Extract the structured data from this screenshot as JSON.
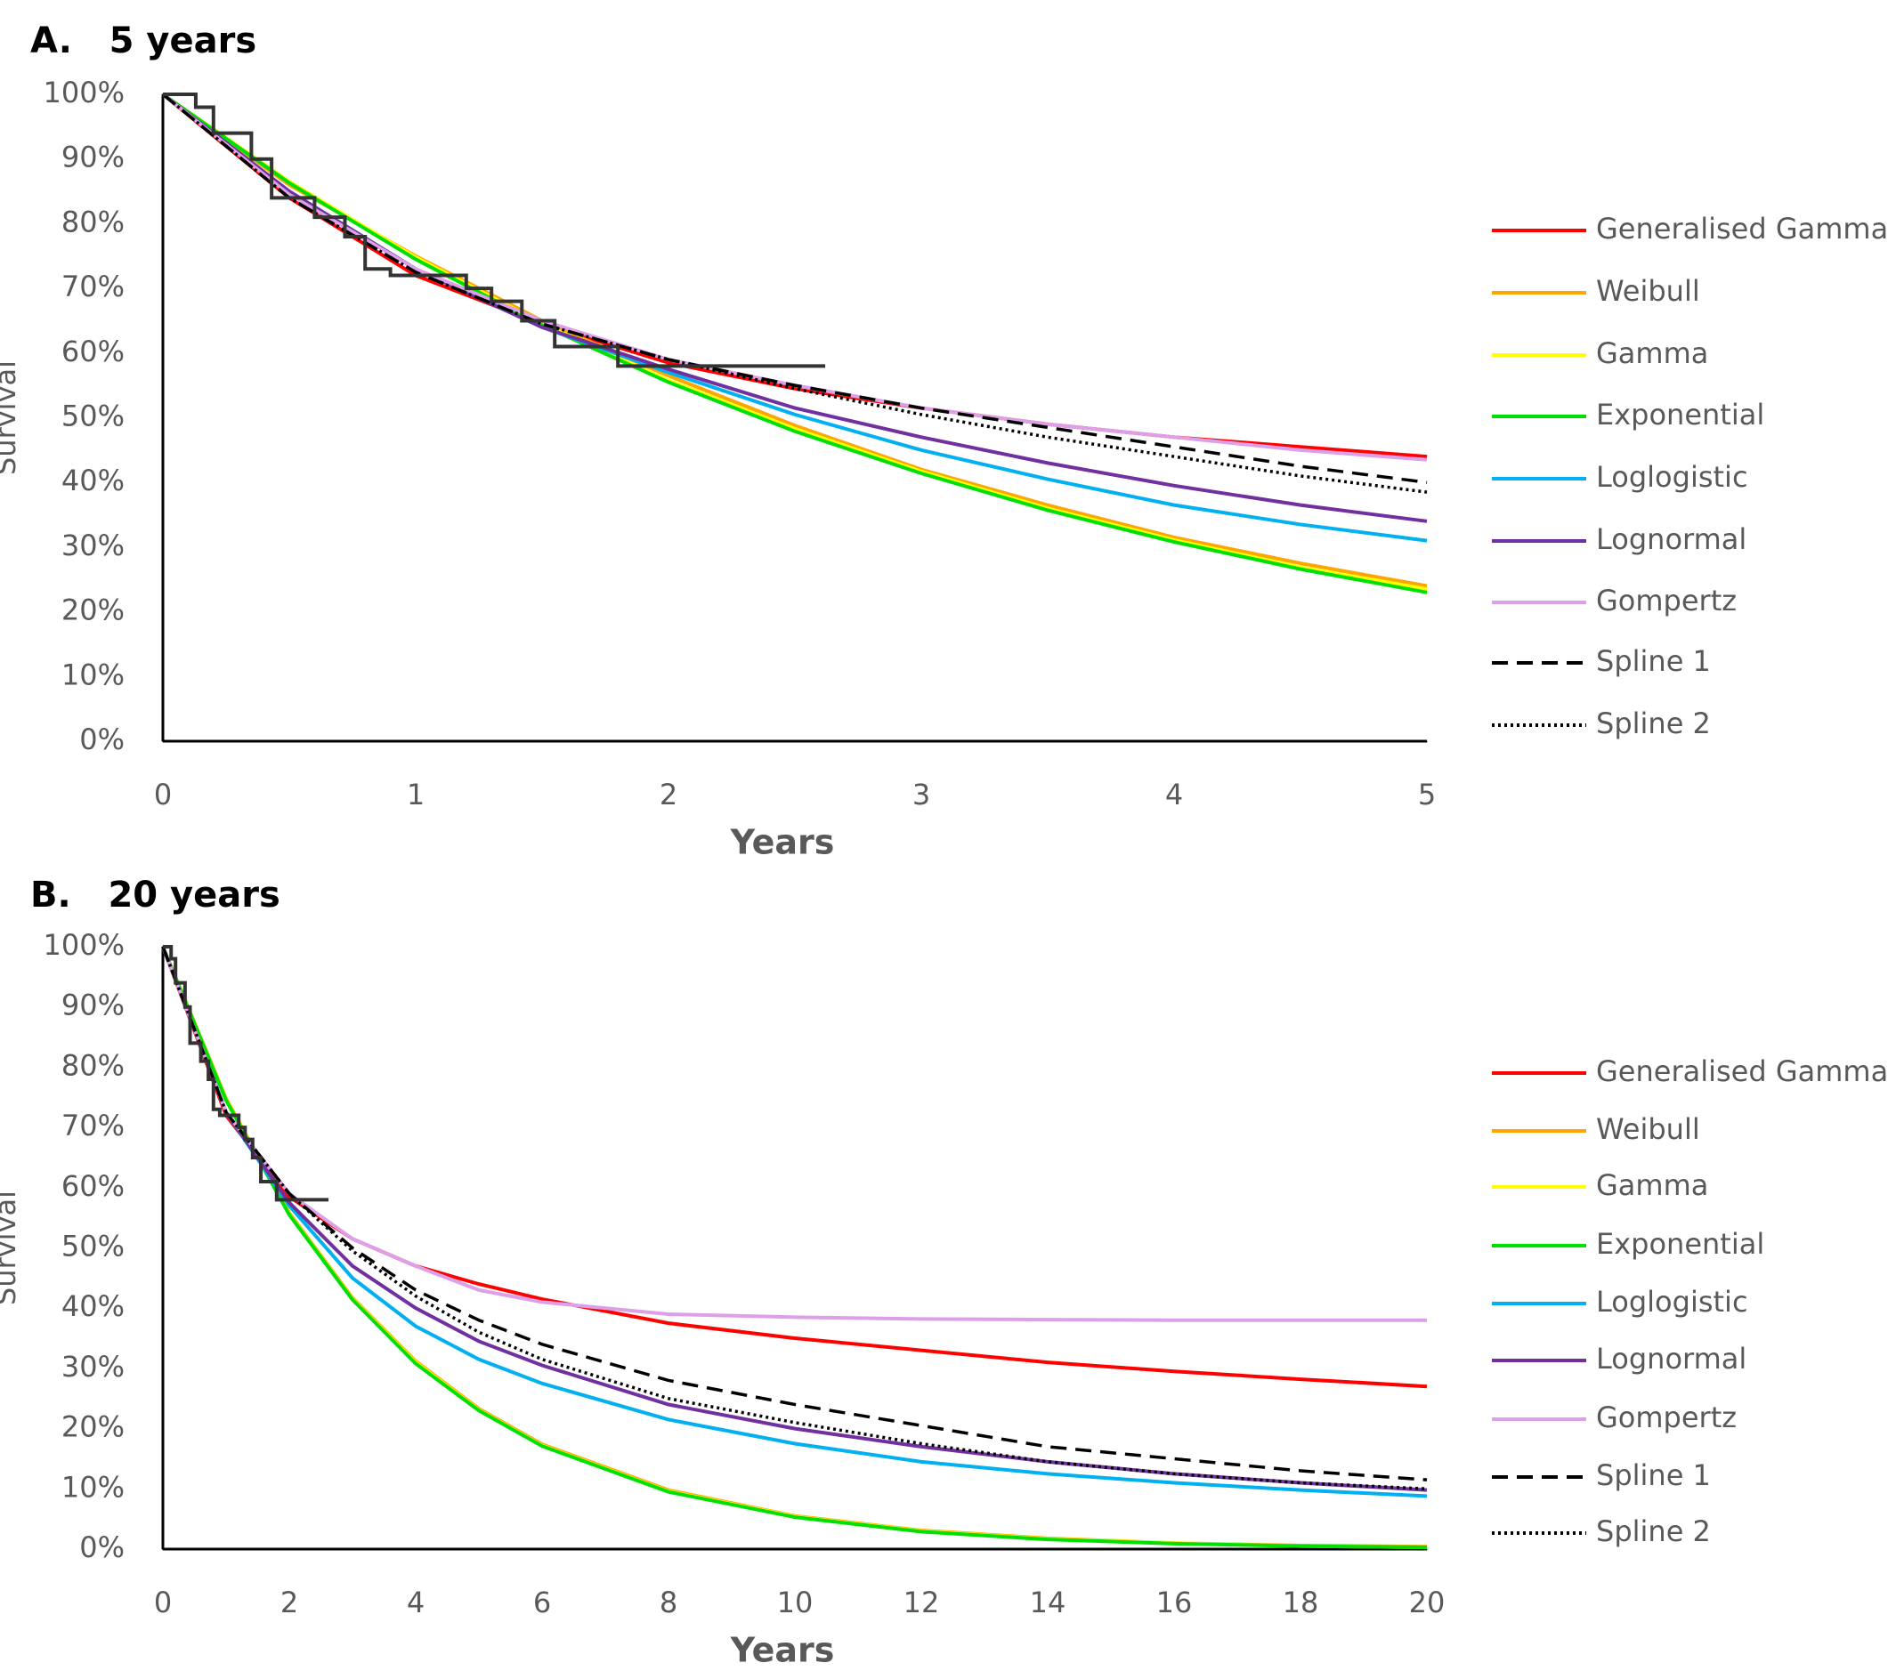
{
  "chart_data": [
    {
      "type": "line",
      "title": "A.   5 years",
      "xlabel": "Years",
      "ylabel": "Survival",
      "xlim": [
        0,
        5
      ],
      "xticks": [
        0,
        1,
        2,
        3,
        4,
        5
      ],
      "ylim": [
        0,
        100
      ],
      "yticks": [
        {
          "value": 0,
          "label": "0%"
        },
        {
          "value": 10,
          "label": "10%"
        },
        {
          "value": 20,
          "label": "20%"
        },
        {
          "value": 30,
          "label": "30%"
        },
        {
          "value": 40,
          "label": "40%"
        },
        {
          "value": 50,
          "label": "50%"
        },
        {
          "value": 60,
          "label": "60%"
        },
        {
          "value": 70,
          "label": "70%"
        },
        {
          "value": 80,
          "label": "80%"
        },
        {
          "value": 90,
          "label": "90%"
        },
        {
          "value": 100,
          "label": "100%"
        }
      ],
      "legend": "right",
      "series": [
        {
          "color": "#333333",
          "x": [
            0,
            0.13,
            0.13,
            0.2,
            0.2,
            0.35,
            0.35,
            0.43,
            0.43,
            0.6,
            0.6,
            0.72,
            0.72,
            0.8,
            0.8,
            0.9,
            0.9,
            1.2,
            1.2,
            1.3,
            1.3,
            1.42,
            1.42,
            1.55,
            1.55,
            1.8,
            1.8,
            2.62
          ],
          "values": [
            100,
            100,
            98,
            98,
            94,
            94,
            90,
            90,
            84,
            84,
            81,
            81,
            78,
            78,
            73,
            73,
            72,
            72,
            70,
            70,
            68,
            68,
            65,
            65,
            61,
            61,
            58,
            58
          ]
        },
        {
          "name": "Generalised Gamma",
          "color": "#ff0000",
          "x": [
            0,
            0.5,
            1,
            1.5,
            2,
            2.5,
            3,
            3.5,
            4,
            4.5,
            5
          ],
          "values": [
            100,
            84,
            72,
            64.5,
            58.5,
            54.5,
            51.5,
            49,
            47,
            45.5,
            44
          ]
        },
        {
          "name": "Weibull",
          "color": "#ffa500",
          "x": [
            0,
            0.5,
            1,
            1.5,
            2,
            2.5,
            3,
            3.5,
            4,
            4.5,
            5
          ],
          "values": [
            100,
            86,
            75,
            65,
            56.5,
            48.8,
            42,
            36.5,
            31.5,
            27.5,
            24
          ]
        },
        {
          "name": "Gamma",
          "color": "#ffff00",
          "x": [
            0,
            0.5,
            1,
            1.5,
            2,
            2.5,
            3,
            3.5,
            4,
            4.5,
            5
          ],
          "values": [
            100,
            86.5,
            74.8,
            64.6,
            55.8,
            48.3,
            41.7,
            36,
            31.1,
            26.9,
            23.5
          ]
        },
        {
          "name": "Exponential",
          "color": "#00e000",
          "x": [
            0,
            0.5,
            1,
            1.5,
            2,
            2.5,
            3,
            3.5,
            4,
            4.5,
            5
          ],
          "values": [
            100,
            86.3,
            74.5,
            64.3,
            55.5,
            47.9,
            41.4,
            35.7,
            30.8,
            26.6,
            23
          ]
        },
        {
          "name": "Loglogistic",
          "color": "#00b0f0",
          "x": [
            0,
            0.5,
            1,
            1.5,
            2,
            2.5,
            3,
            3.5,
            4,
            4.5,
            5
          ],
          "values": [
            100,
            85,
            73,
            64,
            57,
            50.5,
            45,
            40.5,
            36.5,
            33.5,
            31
          ]
        },
        {
          "name": "Lognormal",
          "color": "#7030a0",
          "x": [
            0,
            0.5,
            1,
            1.5,
            2,
            2.5,
            3,
            3.5,
            4,
            4.5,
            5
          ],
          "values": [
            100,
            85,
            73,
            64,
            57.5,
            51.5,
            47,
            43,
            39.5,
            36.5,
            34
          ]
        },
        {
          "name": "Gompertz",
          "color": "#dda0e8",
          "x": [
            0,
            0.5,
            1,
            1.5,
            2,
            2.5,
            3,
            3.5,
            4,
            4.5,
            5
          ],
          "values": [
            100,
            84.5,
            73,
            65,
            59,
            55,
            51.5,
            49,
            47,
            45,
            43.5
          ]
        },
        {
          "name": "Spline 1",
          "color": "#000000",
          "style": "dashed",
          "x": [
            0,
            0.5,
            1,
            1.5,
            2,
            2.5,
            3,
            3.5,
            4,
            4.5,
            5
          ],
          "values": [
            100,
            84,
            72.5,
            64.5,
            59,
            55,
            51.5,
            48.5,
            45.5,
            42.5,
            40
          ]
        },
        {
          "name": "Spline 2",
          "color": "#000000",
          "style": "dotted",
          "x": [
            0,
            0.5,
            1,
            1.5,
            2,
            2.5,
            3,
            3.5,
            4,
            4.5,
            5
          ],
          "values": [
            100,
            84,
            72.5,
            64.5,
            59,
            54.5,
            50.5,
            47,
            44,
            41,
            38.5
          ]
        }
      ]
    },
    {
      "type": "line",
      "title": "B.   20 years",
      "xlabel": "Years",
      "ylabel": "Survival",
      "xlim": [
        0,
        20
      ],
      "xticks": [
        0,
        2,
        4,
        6,
        8,
        10,
        12,
        14,
        16,
        18,
        20
      ],
      "ylim": [
        0,
        100
      ],
      "yticks": [
        {
          "value": 0,
          "label": "0%"
        },
        {
          "value": 10,
          "label": "10%"
        },
        {
          "value": 20,
          "label": "20%"
        },
        {
          "value": 30,
          "label": "30%"
        },
        {
          "value": 40,
          "label": "40%"
        },
        {
          "value": 50,
          "label": "50%"
        },
        {
          "value": 60,
          "label": "60%"
        },
        {
          "value": 70,
          "label": "70%"
        },
        {
          "value": 80,
          "label": "80%"
        },
        {
          "value": 90,
          "label": "90%"
        },
        {
          "value": 100,
          "label": "100%"
        }
      ],
      "legend": "right",
      "series": [
        {
          "color": "#333333",
          "x": [
            0,
            0.13,
            0.13,
            0.2,
            0.2,
            0.35,
            0.35,
            0.43,
            0.43,
            0.6,
            0.6,
            0.72,
            0.72,
            0.8,
            0.8,
            0.9,
            0.9,
            1.2,
            1.2,
            1.3,
            1.3,
            1.42,
            1.42,
            1.55,
            1.55,
            1.8,
            1.8,
            2.62
          ],
          "values": [
            100,
            100,
            98,
            98,
            94,
            94,
            90,
            90,
            84,
            84,
            81,
            81,
            78,
            78,
            73,
            73,
            72,
            72,
            70,
            70,
            68,
            68,
            65,
            65,
            61,
            61,
            58,
            58
          ]
        },
        {
          "name": "Generalised Gamma",
          "color": "#ff0000",
          "x": [
            0,
            1,
            2,
            3,
            4,
            5,
            6,
            8,
            10,
            12,
            14,
            16,
            18,
            20
          ],
          "values": [
            100,
            72,
            58.5,
            51.5,
            47,
            44,
            41.5,
            37.5,
            35,
            33,
            31,
            29.5,
            28.2,
            27
          ]
        },
        {
          "name": "Weibull",
          "color": "#ffa500",
          "x": [
            0,
            1,
            2,
            3,
            4,
            5,
            6,
            8,
            10,
            12,
            14,
            16,
            18,
            20
          ],
          "values": [
            100,
            74.8,
            55.8,
            41.7,
            31.2,
            23.3,
            17.4,
            9.8,
            5.5,
            3.1,
            1.8,
            1,
            0.6,
            0.4
          ]
        },
        {
          "name": "Gamma",
          "color": "#ffff00",
          "x": [
            0,
            1,
            2,
            3,
            4,
            5,
            6,
            8,
            10,
            12,
            14,
            16,
            18,
            20
          ],
          "values": [
            100,
            74.6,
            55.6,
            41.5,
            31,
            23.1,
            17.2,
            9.6,
            5.4,
            3,
            1.7,
            1,
            0.5,
            0.3
          ]
        },
        {
          "name": "Exponential",
          "color": "#00e000",
          "x": [
            0,
            1,
            2,
            3,
            4,
            5,
            6,
            8,
            10,
            12,
            14,
            16,
            18,
            20
          ],
          "values": [
            100,
            74.5,
            55.5,
            41.4,
            30.8,
            23,
            17.1,
            9.5,
            5.3,
            2.9,
            1.6,
            0.9,
            0.5,
            0.3
          ]
        },
        {
          "name": "Loglogistic",
          "color": "#00b0f0",
          "x": [
            0,
            1,
            2,
            3,
            4,
            5,
            6,
            8,
            10,
            12,
            14,
            16,
            18,
            20
          ],
          "values": [
            100,
            72.5,
            57,
            45,
            37,
            31.5,
            27.5,
            21.5,
            17.5,
            14.5,
            12.5,
            11,
            9.8,
            8.8
          ]
        },
        {
          "name": "Lognormal",
          "color": "#7030a0",
          "x": [
            0,
            1,
            2,
            3,
            4,
            5,
            6,
            8,
            10,
            12,
            14,
            16,
            18,
            20
          ],
          "values": [
            100,
            72.5,
            57.5,
            47,
            40,
            34.5,
            30.5,
            24,
            20,
            17,
            14.5,
            12.5,
            11,
            9.8
          ]
        },
        {
          "name": "Gompertz",
          "color": "#dda0e8",
          "x": [
            0,
            1,
            2,
            3,
            4,
            5,
            6,
            8,
            10,
            12,
            14,
            16,
            18,
            20
          ],
          "values": [
            100,
            72.5,
            59,
            51.5,
            47,
            43,
            41,
            39,
            38.5,
            38.2,
            38.1,
            38,
            38,
            38
          ]
        },
        {
          "name": "Spline 1",
          "color": "#000000",
          "style": "dashed",
          "x": [
            0,
            1,
            2,
            3,
            4,
            5,
            6,
            8,
            10,
            12,
            14,
            16,
            18,
            20
          ],
          "values": [
            100,
            72.5,
            59,
            50,
            43,
            38,
            34,
            28,
            24,
            20.5,
            17,
            15,
            13,
            11.5
          ]
        },
        {
          "name": "Spline 2",
          "color": "#000000",
          "style": "dotted",
          "x": [
            0,
            1,
            2,
            3,
            4,
            5,
            6,
            8,
            10,
            12,
            14,
            16,
            18,
            20
          ],
          "values": [
            100,
            72.5,
            59,
            49.5,
            42,
            36,
            31.5,
            25,
            21,
            17.5,
            14.5,
            12.5,
            11,
            10
          ]
        }
      ]
    }
  ]
}
